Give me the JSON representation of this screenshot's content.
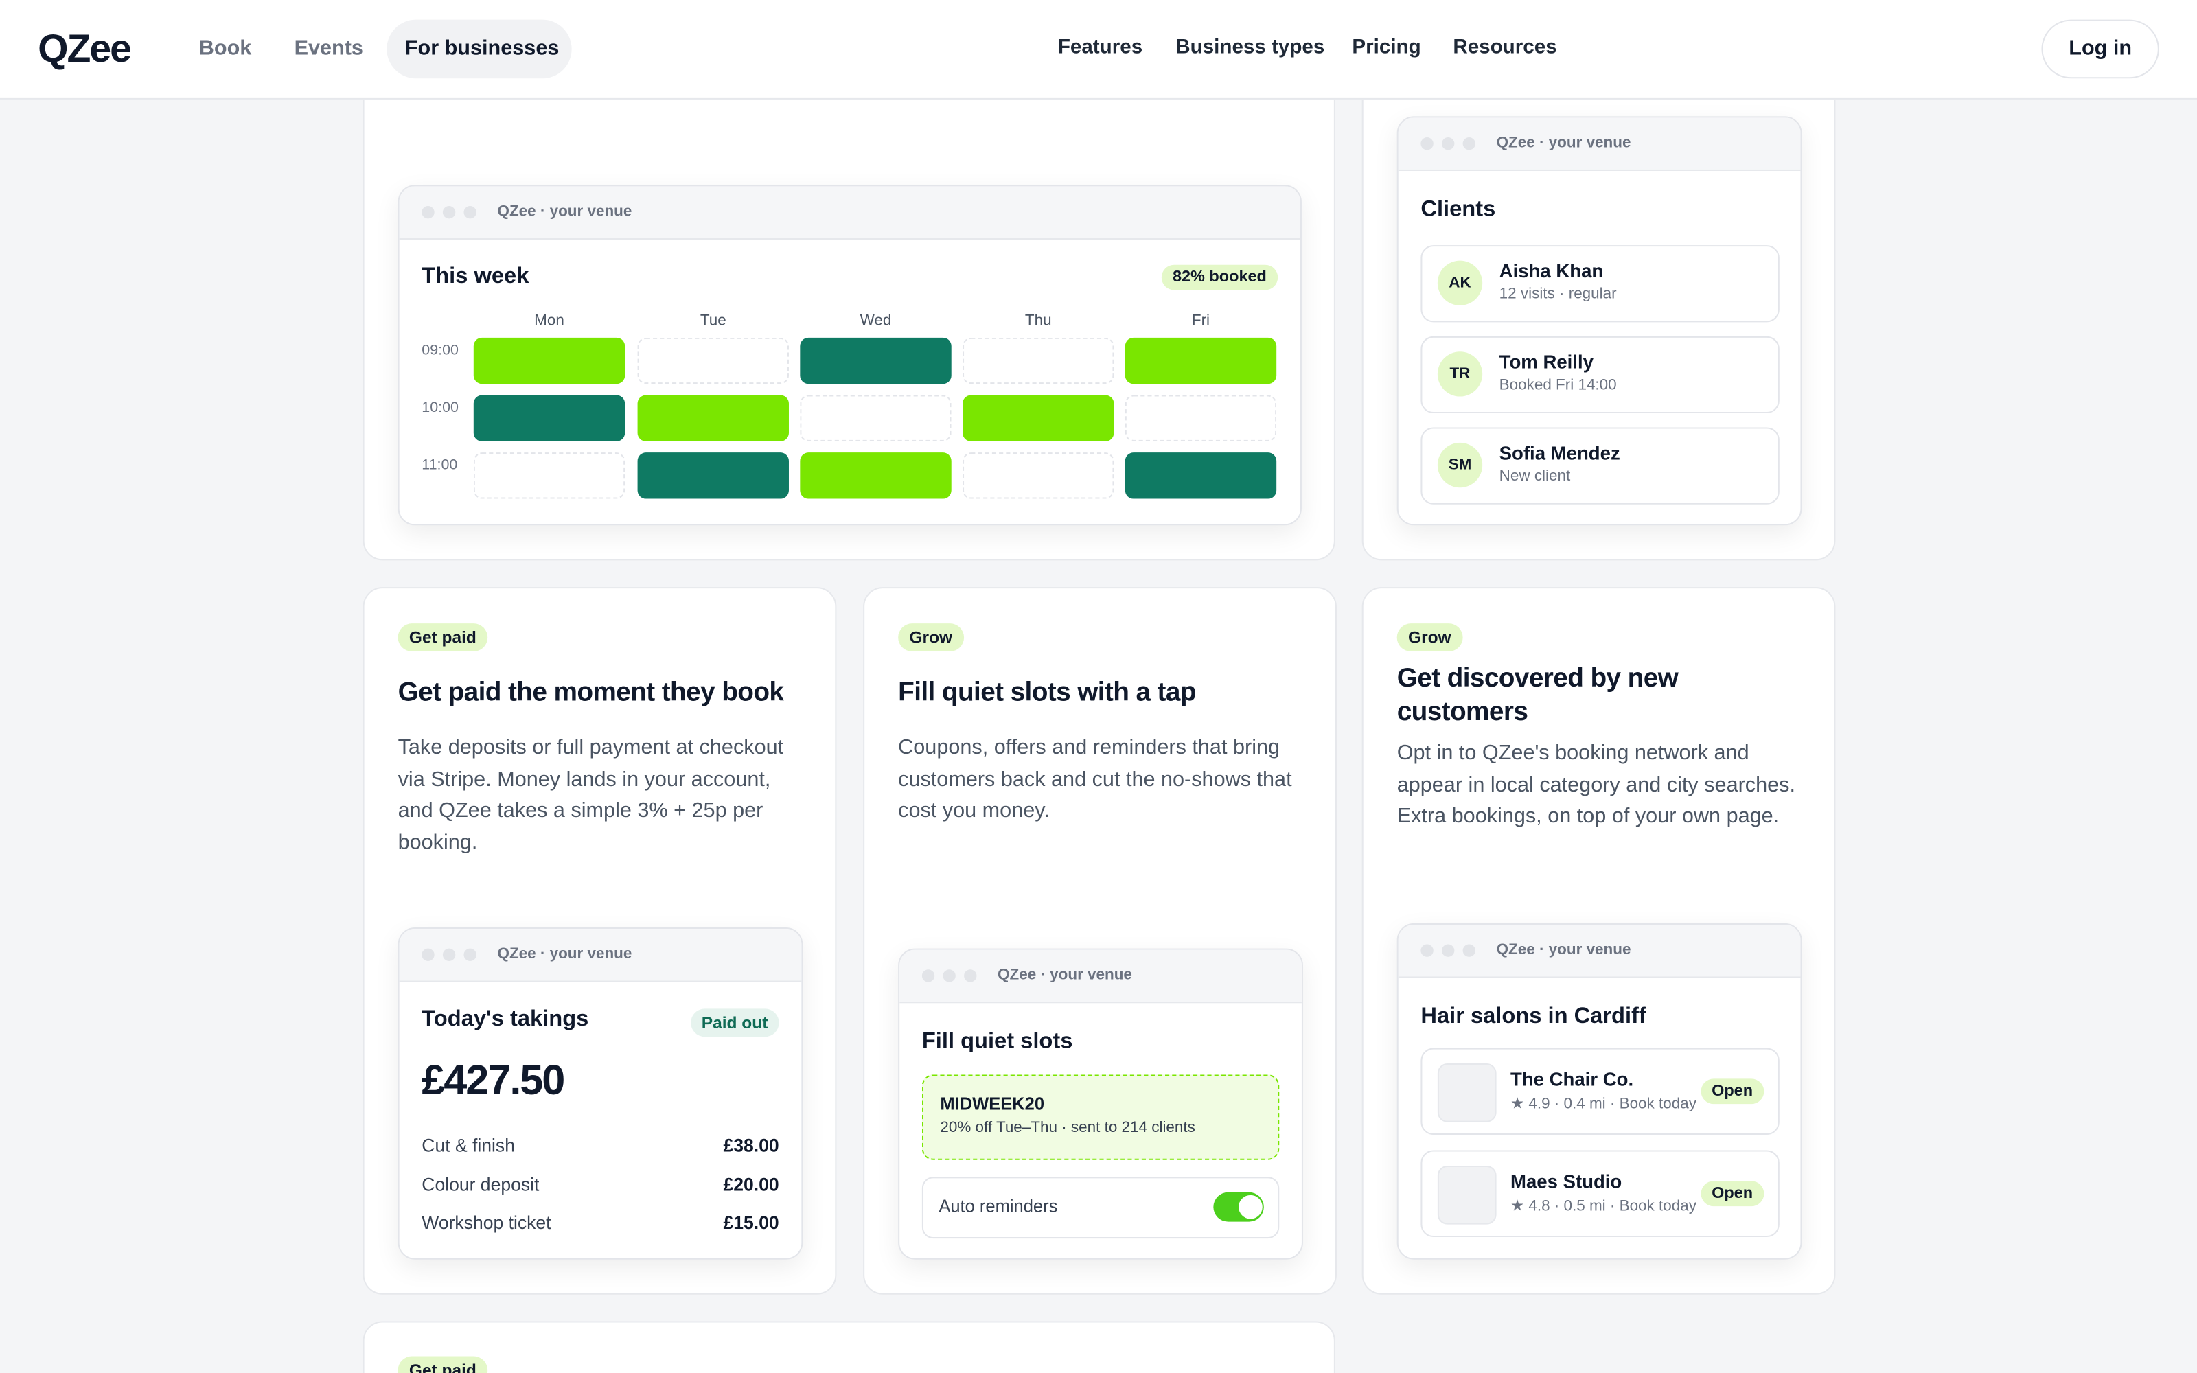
{
  "nav": {
    "logo": "QZee",
    "links": [
      "Book",
      "Events",
      "For businesses"
    ],
    "menu": [
      "Features",
      "Business types",
      "Pricing",
      "Resources"
    ],
    "login": "Log in"
  },
  "schedule_card": {
    "window": "QZee · your venue",
    "title": "This week",
    "badge": "82% booked",
    "days": [
      "Mon",
      "Tue",
      "Wed",
      "Thu",
      "Fri"
    ],
    "times": [
      "09:00",
      "10:00",
      "11:00"
    ]
  },
  "clients_card": {
    "window": "QZee · your venue",
    "title": "Clients",
    "clients": [
      {
        "initials": "AK",
        "name": "Aisha Khan",
        "note": "12 visits · regular"
      },
      {
        "initials": "TR",
        "name": "Tom Reilly",
        "note": "Booked Fri 14:00"
      },
      {
        "initials": "SM",
        "name": "Sofia Mendez",
        "note": "New client"
      }
    ]
  },
  "features": [
    {
      "tag": "Get paid",
      "title": "Get paid the moment they book",
      "body": "Take deposits or full payment at checkout via Stripe. Money lands in your account, and QZee takes a simple 3% + 25p per booking.",
      "window": "QZee · your venue",
      "panel_title": "Today's takings",
      "badge": "Paid out",
      "total": "£427.50",
      "lines": [
        {
          "label": "Cut & finish",
          "amount": "£38.00"
        },
        {
          "label": "Colour deposit",
          "amount": "£20.00"
        },
        {
          "label": "Workshop ticket",
          "amount": "£15.00"
        }
      ]
    },
    {
      "tag": "Grow",
      "title": "Fill quiet slots with a tap",
      "body": "Coupons, offers and reminders that bring customers back and cut the no-shows that cost you money.",
      "window": "QZee · your venue",
      "panel_title": "Fill quiet slots",
      "code": "MIDWEEK20",
      "code_note": "20% off Tue–Thu · sent to 214 clients",
      "toggle": "Auto reminders"
    },
    {
      "tag": "Grow",
      "title": "Get discovered by new customers",
      "body": "Opt in to QZee's booking network and appear in local category and city searches. Extra bookings, on top of your own page.",
      "window": "QZee · your venue",
      "panel_title": "Hair salons in Cardiff",
      "listings": [
        {
          "name": "The Chair Co.",
          "meta": "★ 4.9 · 0.4 mi · Book today",
          "status": "Open"
        },
        {
          "name": "Maes Studio",
          "meta": "★ 4.8 · 0.5 mi · Book today",
          "status": "Open"
        }
      ]
    }
  ],
  "next_card": {
    "tag": "Get paid"
  }
}
